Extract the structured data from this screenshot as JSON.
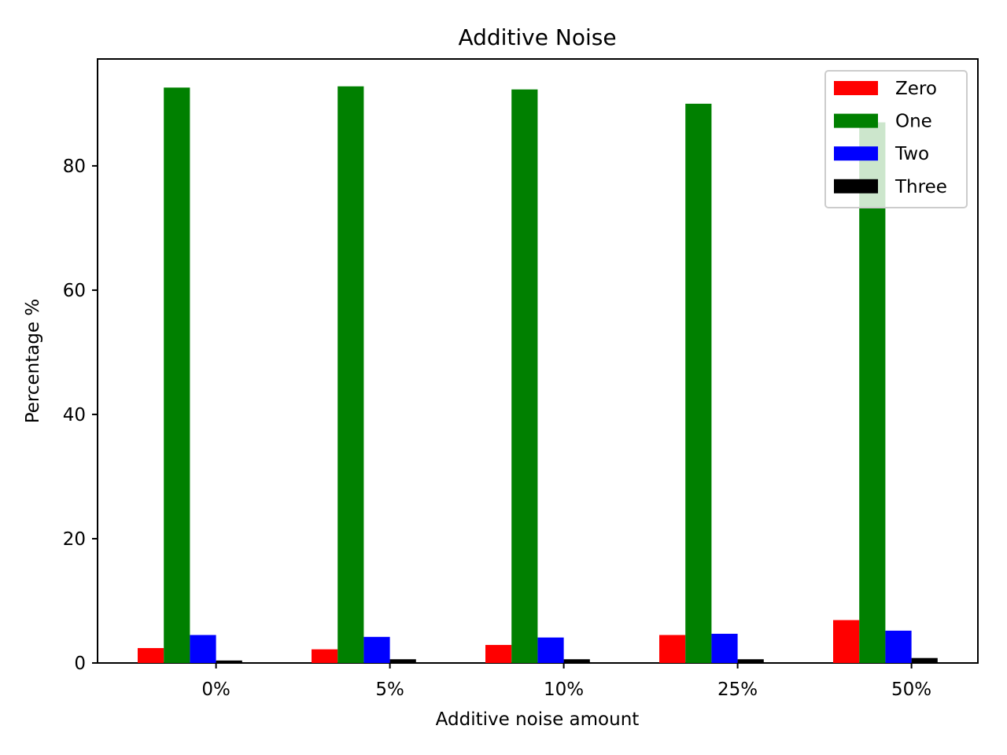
{
  "chart_data": {
    "type": "bar",
    "title": "Additive Noise",
    "xlabel": "Additive noise amount",
    "ylabel": "Percentage %",
    "categories": [
      "0%",
      "5%",
      "10%",
      "25%",
      "50%"
    ],
    "series": [
      {
        "name": "Zero",
        "color": "#ff0000",
        "values": [
          2.4,
          2.2,
          2.9,
          4.5,
          6.9
        ]
      },
      {
        "name": "One",
        "color": "#008000",
        "values": [
          92.6,
          92.8,
          92.3,
          90.0,
          87.0
        ]
      },
      {
        "name": "Two",
        "color": "#0000ff",
        "values": [
          4.5,
          4.2,
          4.1,
          4.7,
          5.2
        ]
      },
      {
        "name": "Three",
        "color": "#000000",
        "values": [
          0.4,
          0.6,
          0.6,
          0.6,
          0.8
        ]
      }
    ],
    "yticks": [
      0,
      20,
      40,
      60,
      80
    ],
    "ylim": [
      0,
      97.2
    ],
    "grid": false,
    "legend_position": "top-right"
  }
}
